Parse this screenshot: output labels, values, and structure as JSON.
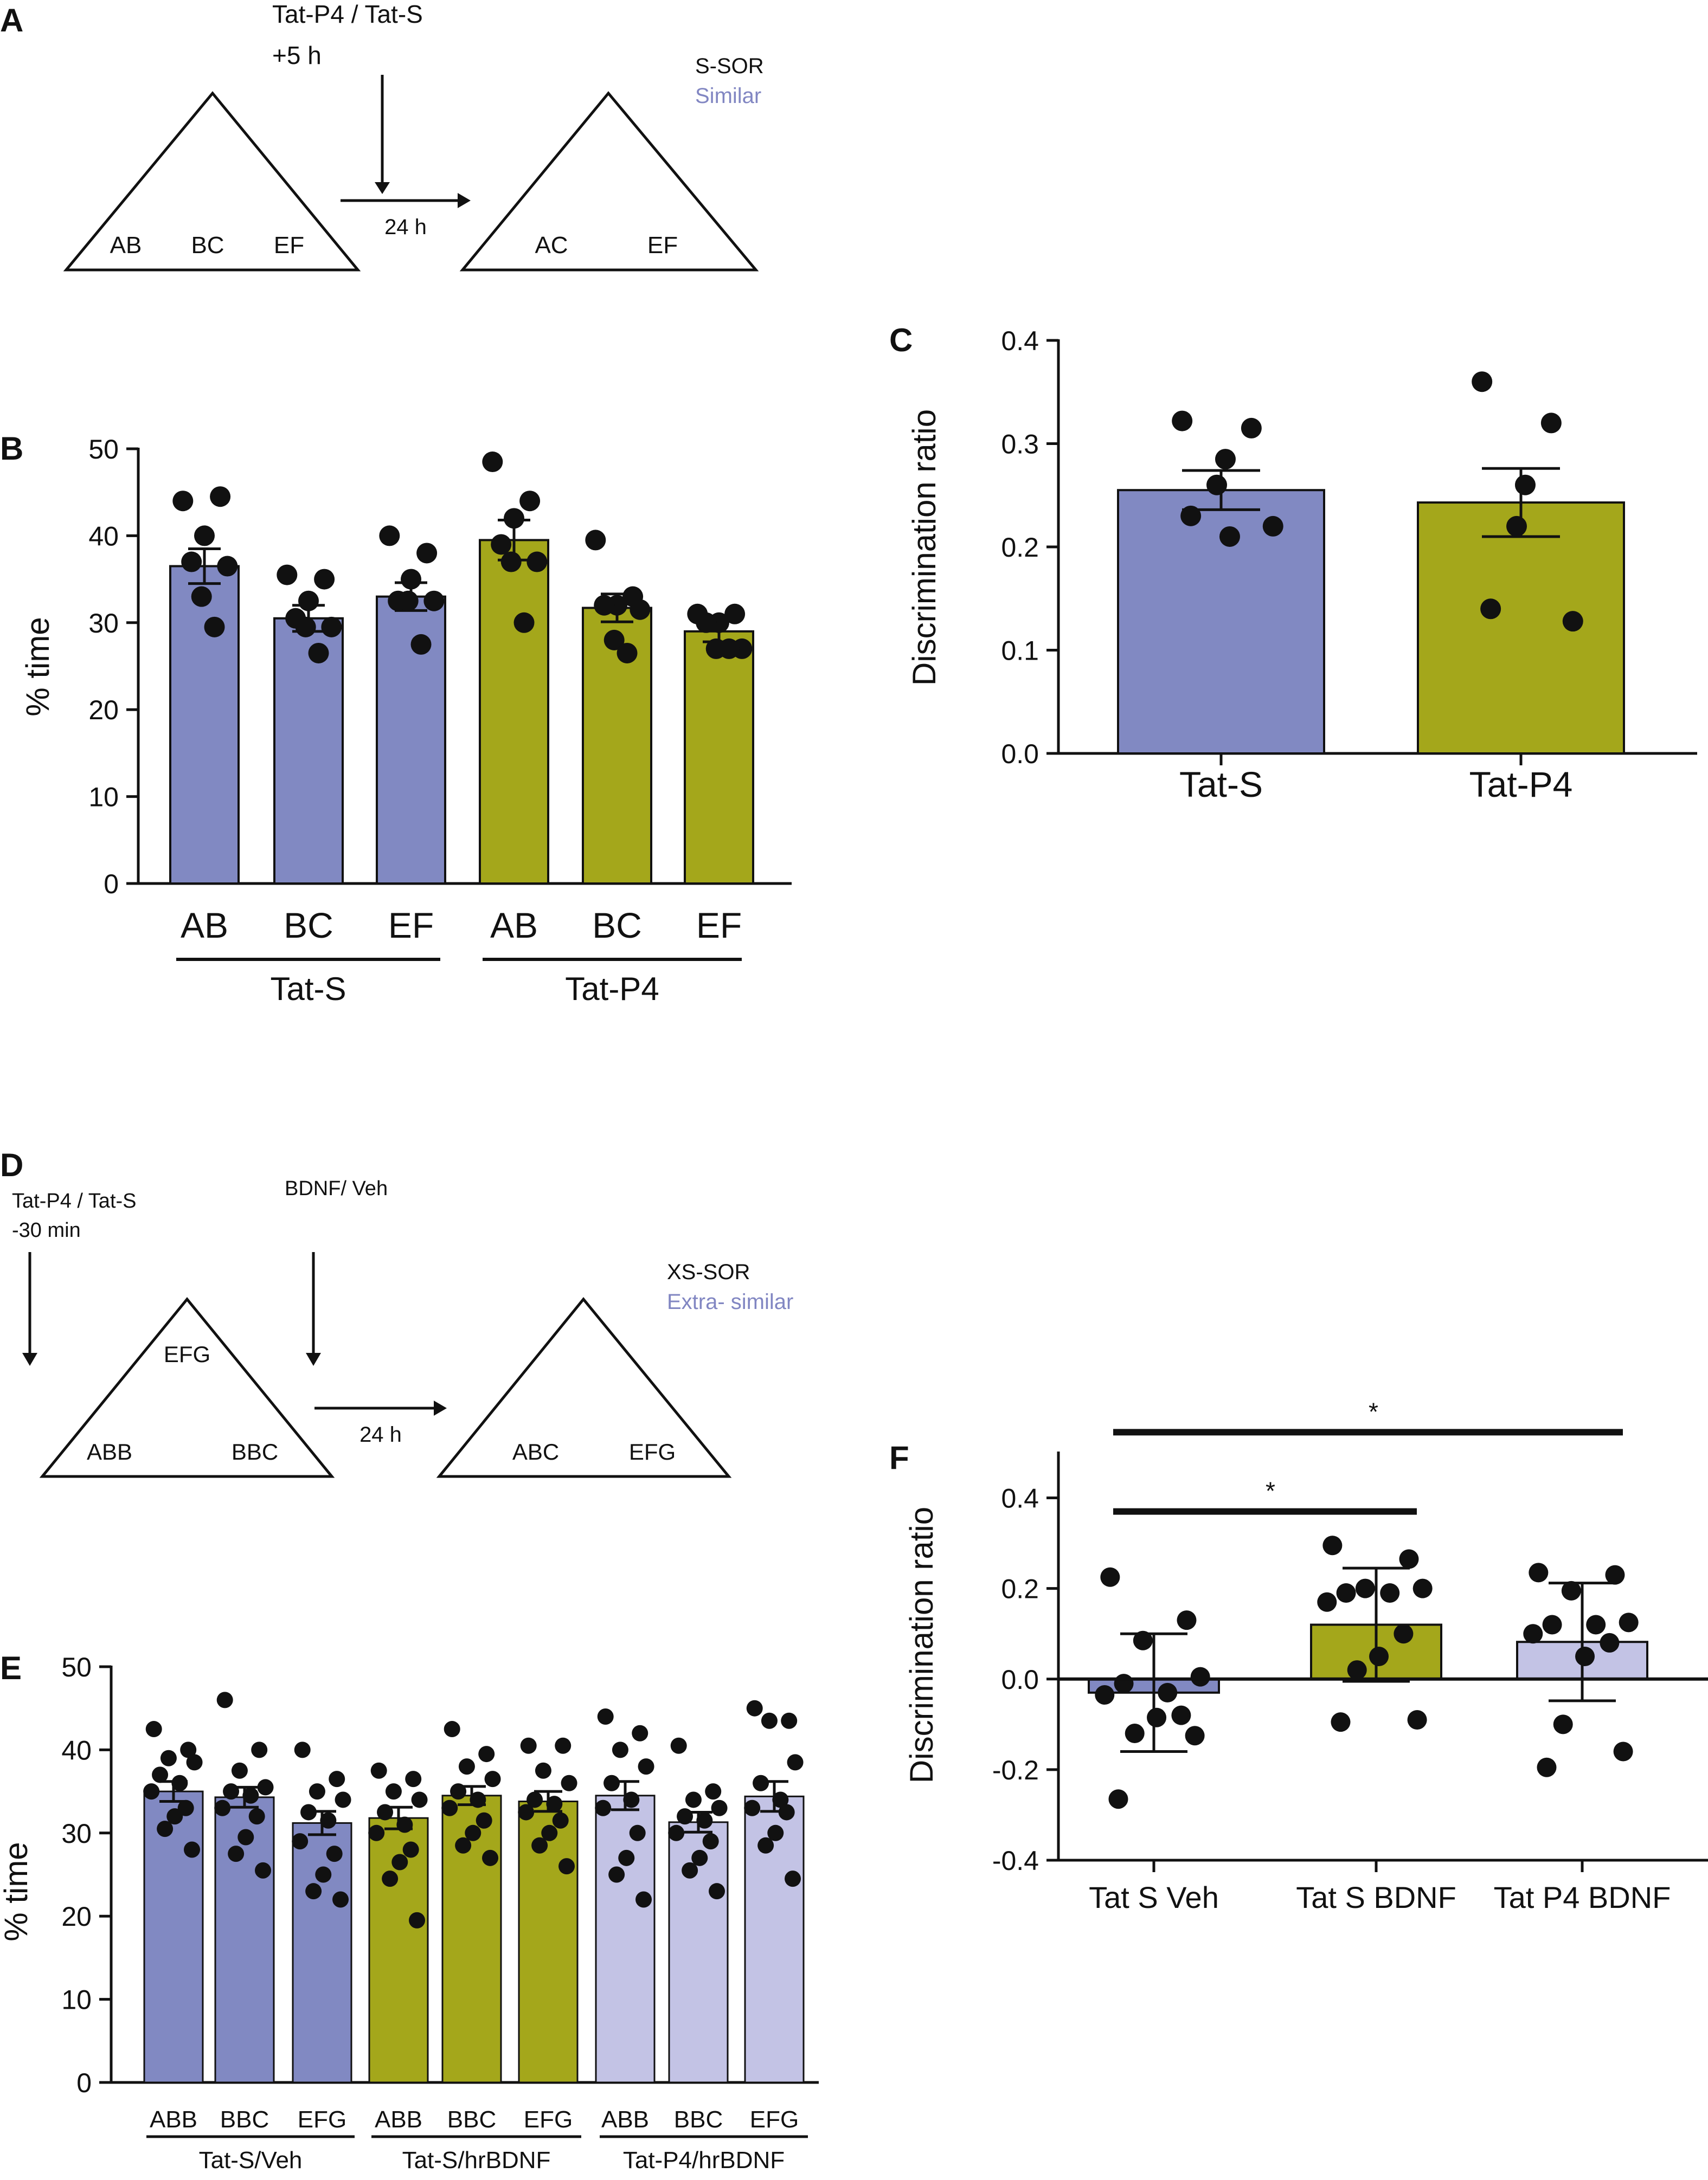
{
  "colors": {
    "blue": "#8189c2",
    "olive": "#a4a71b",
    "lavender": "#c3c3e5",
    "accent_text": "#8186c2",
    "ink": "#111111"
  },
  "panels": {
    "A": {
      "letter": "A",
      "drug": "Tat-P4 / Tat-S",
      "time": "+5 h",
      "delay": "24 h",
      "task": "S-SOR",
      "task_desc": "Similar",
      "left_objects": [
        "AB",
        "BC",
        "EF"
      ],
      "right_objects": [
        "AC",
        "EF"
      ]
    },
    "D": {
      "letter": "D",
      "drug": "Tat-P4 / Tat-S",
      "time": "-30 min",
      "second_drug": "BDNF/ Veh",
      "delay": "24 h",
      "task": "XS-SOR",
      "task_desc": "Extra- similar",
      "left_objects": [
        "EFG",
        "ABB",
        "BBC"
      ],
      "right_objects": [
        "ABC",
        "EFG"
      ]
    }
  },
  "chart_data": [
    {
      "panel": "B",
      "type": "bar",
      "ylabel": "% time",
      "ylim": [
        0,
        50
      ],
      "yticks": [
        "0",
        "10",
        "20",
        "30",
        "40",
        "50"
      ],
      "categories": [
        "AB",
        "BC",
        "EF",
        "AB",
        "BC",
        "EF"
      ],
      "groups": [
        {
          "label": "Tat-S",
          "color": "blue"
        },
        {
          "label": "Tat-P4",
          "color": "olive"
        }
      ],
      "bars": [
        {
          "category": "AB",
          "group": 0,
          "mean": 36.5,
          "sem": 2.0,
          "points": [
            44,
            44.5,
            40,
            37,
            36.5,
            33,
            29.5
          ]
        },
        {
          "category": "BC",
          "group": 0,
          "mean": 30.5,
          "sem": 1.5,
          "points": [
            35.5,
            35,
            32.5,
            30.5,
            29.5,
            29.5,
            26.5
          ]
        },
        {
          "category": "EF",
          "group": 0,
          "mean": 33.0,
          "sem": 1.6,
          "points": [
            40,
            38,
            35,
            32.5,
            32.5,
            32.5,
            27.5
          ]
        },
        {
          "category": "AB",
          "group": 1,
          "mean": 39.5,
          "sem": 2.3,
          "points": [
            48.5,
            44,
            42,
            39,
            37,
            37,
            30
          ]
        },
        {
          "category": "BC",
          "group": 1,
          "mean": 31.7,
          "sem": 1.6,
          "points": [
            39.5,
            33,
            32,
            32,
            31.5,
            28,
            26.5
          ]
        },
        {
          "category": "EF",
          "group": 1,
          "mean": 29.0,
          "sem": 1.2,
          "points": [
            31,
            31,
            30,
            30,
            27,
            27,
            27
          ]
        }
      ]
    },
    {
      "panel": "C",
      "type": "bar",
      "ylabel": "Discrimination ratio",
      "ylim": [
        0,
        0.4
      ],
      "yticks": [
        "0.0",
        "0.1",
        "0.2",
        "0.3",
        "0.4"
      ],
      "categories": [
        "Tat-S",
        "Tat-P4"
      ],
      "bars": [
        {
          "category": "Tat-S",
          "color": "blue",
          "mean": 0.255,
          "sem": 0.019,
          "points": [
            0.322,
            0.315,
            0.285,
            0.26,
            0.23,
            0.22,
            0.21
          ]
        },
        {
          "category": "Tat-P4",
          "color": "olive",
          "mean": 0.243,
          "sem": 0.033,
          "points": [
            0.36,
            0.32,
            0.26,
            0.22,
            0.14,
            0.128
          ]
        }
      ]
    },
    {
      "panel": "E",
      "type": "bar",
      "ylabel": "% time",
      "ylim": [
        0,
        50
      ],
      "yticks": [
        "0",
        "10",
        "20",
        "30",
        "40",
        "50"
      ],
      "categories": [
        "ABB",
        "BBC",
        "EFG",
        "ABB",
        "BBC",
        "EFG",
        "ABB",
        "BBC",
        "EFG"
      ],
      "groups": [
        {
          "label": "Tat-S/Veh",
          "color": "blue"
        },
        {
          "label": "Tat-S/hrBDNF",
          "color": "olive"
        },
        {
          "label": "Tat-P4/hrBDNF",
          "color": "lavender"
        }
      ],
      "bars": [
        {
          "category": "ABB",
          "group": 0,
          "mean": 35.0,
          "sem": 1.2,
          "points": [
            42.5,
            40,
            39,
            38.5,
            37,
            36,
            35,
            33,
            32,
            30.5,
            28
          ]
        },
        {
          "category": "BBC",
          "group": 0,
          "mean": 34.3,
          "sem": 1.2,
          "points": [
            46,
            40,
            37.5,
            35.5,
            35,
            34.5,
            33,
            32,
            29.5,
            27.5,
            25.5
          ]
        },
        {
          "category": "EFG",
          "group": 0,
          "mean": 31.2,
          "sem": 1.4,
          "points": [
            40,
            36.5,
            35,
            34,
            32.5,
            31.5,
            29,
            27.5,
            25,
            23,
            22
          ]
        },
        {
          "category": "ABB",
          "group": 1,
          "mean": 31.8,
          "sem": 1.3,
          "points": [
            37.5,
            36.5,
            35,
            34,
            32.5,
            31,
            30,
            28,
            26.5,
            24.5,
            19.5
          ]
        },
        {
          "category": "BBC",
          "group": 1,
          "mean": 34.5,
          "sem": 1.1,
          "points": [
            42.5,
            39.5,
            38,
            36.5,
            35,
            34,
            33,
            31.5,
            30,
            28.5,
            27
          ]
        },
        {
          "category": "EFG",
          "group": 1,
          "mean": 33.8,
          "sem": 1.2,
          "points": [
            40.5,
            40.5,
            37.5,
            36,
            34,
            33.5,
            32.5,
            31.5,
            30,
            28.5,
            26
          ]
        },
        {
          "category": "ABB",
          "group": 2,
          "mean": 34.5,
          "sem": 1.7,
          "points": [
            44,
            42,
            40,
            38,
            36,
            34,
            33,
            30,
            27,
            25,
            22
          ]
        },
        {
          "category": "BBC",
          "group": 2,
          "mean": 31.3,
          "sem": 1.2,
          "points": [
            40.5,
            35,
            34,
            33,
            32,
            31.5,
            30,
            29,
            27,
            25.5,
            23
          ]
        },
        {
          "category": "EFG",
          "group": 2,
          "mean": 34.4,
          "sem": 1.8,
          "points": [
            45,
            43.5,
            43.5,
            38.5,
            36,
            34,
            33,
            32.5,
            30,
            28.5,
            24.5
          ]
        }
      ],
      "group_labels": [
        "Tat-S/Veh",
        "Tat-S/hrBDNF",
        "Tat-P4/hrBDNF"
      ]
    },
    {
      "panel": "F",
      "type": "bar",
      "ylabel": "Discrimination ratio",
      "ylim": [
        -0.4,
        0.5
      ],
      "yticks": [
        "-0.4",
        "-0.2",
        "0.0",
        "0.2",
        "0.4"
      ],
      "categories": [
        "Tat S Veh",
        "Tat S BDNF",
        "Tat P4 BDNF"
      ],
      "bars": [
        {
          "category": "Tat S Veh",
          "color": "blue",
          "mean": -0.03,
          "sd": 0.13,
          "points": [
            0.225,
            0.13,
            0.085,
            0.005,
            -0.01,
            -0.03,
            -0.035,
            -0.08,
            -0.085,
            -0.12,
            -0.125,
            -0.265
          ]
        },
        {
          "category": "Tat S BDNF",
          "color": "olive",
          "mean": 0.12,
          "sd": 0.125,
          "points": [
            0.295,
            0.265,
            0.2,
            0.2,
            0.19,
            0.19,
            0.17,
            0.1,
            0.05,
            0.02,
            -0.09,
            -0.095
          ]
        },
        {
          "category": "Tat P4 BDNF",
          "color": "lavender",
          "mean": 0.082,
          "sd": 0.13,
          "points": [
            0.235,
            0.23,
            0.195,
            0.125,
            0.12,
            0.12,
            0.1,
            0.08,
            0.05,
            -0.1,
            -0.16,
            -0.195
          ]
        }
      ],
      "significance": [
        {
          "from": 0,
          "to": 1,
          "label": "*",
          "level": 0.37
        },
        {
          "from": 0,
          "to": 2,
          "label": "*",
          "level": 0.545
        }
      ]
    }
  ]
}
